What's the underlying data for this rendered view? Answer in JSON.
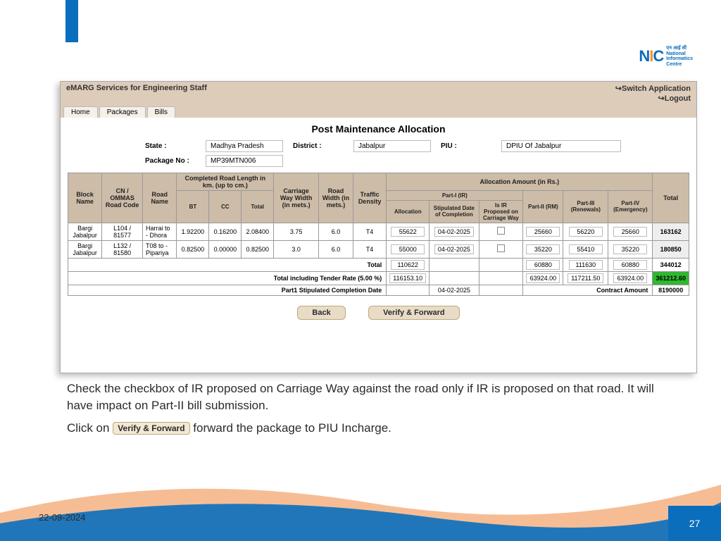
{
  "logo": {
    "label1": "एन आई सी",
    "label2": "National",
    "label3": "Informatics",
    "label4": "Centre"
  },
  "app": {
    "title": "eMARG   Services for Engineering Staff",
    "switch": "↪Switch Application",
    "logout": "↪Logout",
    "tabs": [
      "Home",
      "Packages",
      "Bills"
    ]
  },
  "page_title": "Post Maintenance Allocation",
  "filters": {
    "state_label": "State :",
    "state": "Madhya Pradesh",
    "district_label": "District :",
    "district": "Jabalpur",
    "piu_label": "PIU :",
    "piu": "DPIU Of Jabalpur",
    "pkg_label": "Package No :",
    "pkg": "MP39MTN006"
  },
  "headers": {
    "block": "Block Name",
    "cn": "CN / OMMAS Road Code",
    "road": "Road Name",
    "completed": "Completed Road Length in km. (up to cm.)",
    "bt": "BT",
    "cc": "CC",
    "total": "Total",
    "cw": "Carriage Way Width (in mets.)",
    "rw": "Road Width (in mets.)",
    "traffic": "Traffic Density",
    "alloc": "Allocation Amount (in Rs.)",
    "p1": "Part-I (IR)",
    "p1_alloc": "Allocation",
    "p1_date": "Stipulated Date of Completion",
    "p1_ir": "Is IR Proposed on Carriage Way",
    "p2": "Part-II (RM)",
    "p3": "Part-III (Renewals)",
    "p4": "Part-IV (Emergency)",
    "gtotal": "Total"
  },
  "rows": [
    {
      "block": "Bargi Jabalpur",
      "cn": "L104 / 81577",
      "road": "Harrai to - Dhora",
      "bt": "1.92200",
      "cc": "0.16200",
      "total": "2.08400",
      "cw": "3.75",
      "rw": "6.0",
      "traffic": "T4",
      "p1a": "55622",
      "p1d": "04-02-2025",
      "p2": "25660",
      "p3": "56220",
      "p4": "25660",
      "tot": "163162"
    },
    {
      "block": "Bargi Jabalpur",
      "cn": "L132 / 81580",
      "road": "T08 to - Pipariya",
      "bt": "0.82500",
      "cc": "0.00000",
      "total": "0.82500",
      "cw": "3.0",
      "rw": "6.0",
      "traffic": "T4",
      "p1a": "55000",
      "p1d": "04-02-2025",
      "p2": "35220",
      "p3": "55410",
      "p4": "35220",
      "tot": "180850"
    }
  ],
  "summary": {
    "total_label": "Total",
    "p1a": "110622",
    "p2": "60880",
    "p3": "111630",
    "p4": "60880",
    "tot": "344012",
    "tender_label": "Total including Tender Rate (5.00 %)",
    "t_p1a": "116153.10",
    "t_p2": "63924.00",
    "t_p3": "117211.50",
    "t_p4": "63924.00",
    "t_tot": "361212.60",
    "stip_label": "Part1 Stipulated Completion Date",
    "stip_date": "04-02-2025",
    "contract_label": "Contract Amount",
    "contract": "8190000"
  },
  "buttons": {
    "back": "Back",
    "verify": "Verify & Forward"
  },
  "instructions": {
    "p1": "Check the checkbox of IR proposed on Carriage Way against the road only if IR is proposed on that road. It will have impact on Part-II bill submission.",
    "p2a": "Click on ",
    "btn": "Verify & Forward",
    "p2b": " forward the package to PIU Incharge."
  },
  "footer": {
    "date": "22-09-2024",
    "page": "27"
  }
}
